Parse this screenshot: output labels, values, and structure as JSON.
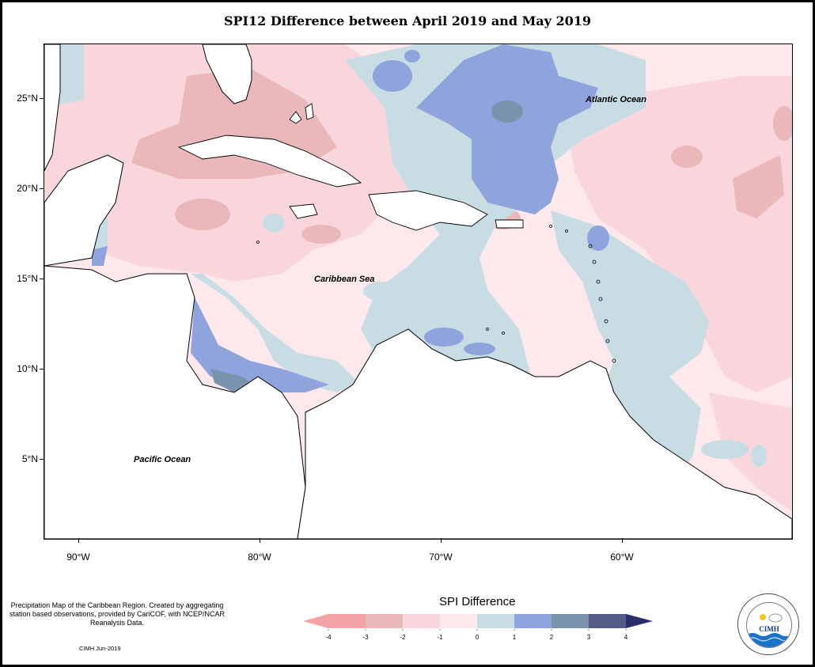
{
  "title": "SPI12 Difference between April 2019 and May 2019",
  "map": {
    "lat_labels": [
      "25°N",
      "20°N",
      "15°N",
      "10°N",
      "5°N"
    ],
    "lon_labels": [
      "90°W",
      "80°W",
      "70°W",
      "60°W"
    ],
    "place_labels": {
      "atlantic": "Atlantic Ocean",
      "caribbean": "Caribbean Sea",
      "pacific": "Pacific Ocean"
    }
  },
  "legend": {
    "title": "SPI Difference",
    "tick_labels": [
      "-4",
      "-3",
      "-2",
      "-1",
      "0",
      "1",
      "2",
      "3",
      "4"
    ],
    "colors": [
      "#f4a3a6",
      "#eab8ba",
      "#f9d6dc",
      "#fde9ec",
      "#c7dde3",
      "#8fa3dc",
      "#7b93ad",
      "#545c86"
    ]
  },
  "footer": {
    "description": "Precipitation Map of the Caribbean Region. Created by aggregating station based observations, provided by CariCOF, with NCEP/NCAR Reanalysis Data.",
    "credit": "CIMH Jun-2019"
  },
  "logo": {
    "text": "CIMH"
  }
}
